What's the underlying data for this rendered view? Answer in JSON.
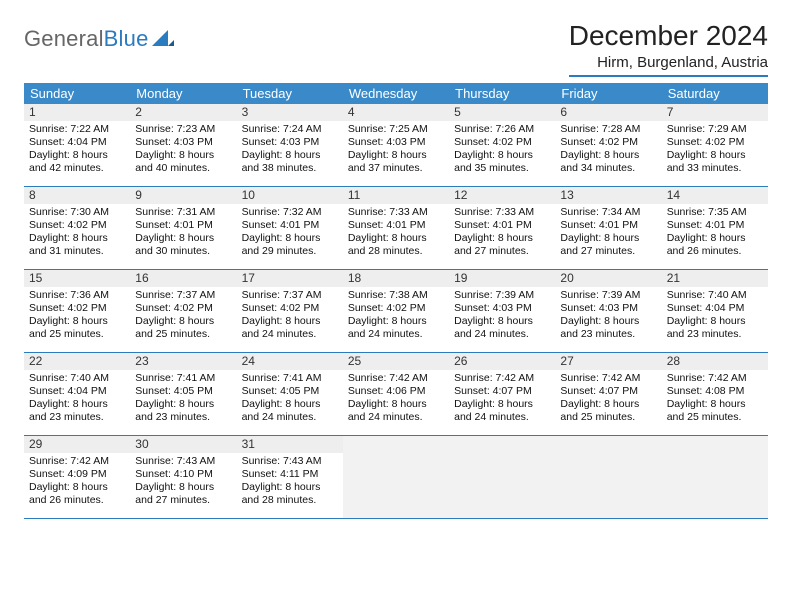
{
  "logo": {
    "text_general": "General",
    "text_blue": "Blue"
  },
  "title": "December 2024",
  "location": "Hirm, Burgenland, Austria",
  "colors": {
    "header_bg": "#3a8ac9",
    "header_text": "#ffffff",
    "daynum_bg": "#eeeeee",
    "border": "#2b7bbf",
    "logo_gray": "#666666",
    "logo_blue": "#2b7bbf",
    "body_text": "#111111",
    "bg": "#ffffff"
  },
  "weekdays": [
    "Sunday",
    "Monday",
    "Tuesday",
    "Wednesday",
    "Thursday",
    "Friday",
    "Saturday"
  ],
  "weeks": [
    [
      {
        "day": "1",
        "sunrise": "Sunrise: 7:22 AM",
        "sunset": "Sunset: 4:04 PM",
        "daylight": "Daylight: 8 hours and 42 minutes."
      },
      {
        "day": "2",
        "sunrise": "Sunrise: 7:23 AM",
        "sunset": "Sunset: 4:03 PM",
        "daylight": "Daylight: 8 hours and 40 minutes."
      },
      {
        "day": "3",
        "sunrise": "Sunrise: 7:24 AM",
        "sunset": "Sunset: 4:03 PM",
        "daylight": "Daylight: 8 hours and 38 minutes."
      },
      {
        "day": "4",
        "sunrise": "Sunrise: 7:25 AM",
        "sunset": "Sunset: 4:03 PM",
        "daylight": "Daylight: 8 hours and 37 minutes."
      },
      {
        "day": "5",
        "sunrise": "Sunrise: 7:26 AM",
        "sunset": "Sunset: 4:02 PM",
        "daylight": "Daylight: 8 hours and 35 minutes."
      },
      {
        "day": "6",
        "sunrise": "Sunrise: 7:28 AM",
        "sunset": "Sunset: 4:02 PM",
        "daylight": "Daylight: 8 hours and 34 minutes."
      },
      {
        "day": "7",
        "sunrise": "Sunrise: 7:29 AM",
        "sunset": "Sunset: 4:02 PM",
        "daylight": "Daylight: 8 hours and 33 minutes."
      }
    ],
    [
      {
        "day": "8",
        "sunrise": "Sunrise: 7:30 AM",
        "sunset": "Sunset: 4:02 PM",
        "daylight": "Daylight: 8 hours and 31 minutes."
      },
      {
        "day": "9",
        "sunrise": "Sunrise: 7:31 AM",
        "sunset": "Sunset: 4:01 PM",
        "daylight": "Daylight: 8 hours and 30 minutes."
      },
      {
        "day": "10",
        "sunrise": "Sunrise: 7:32 AM",
        "sunset": "Sunset: 4:01 PM",
        "daylight": "Daylight: 8 hours and 29 minutes."
      },
      {
        "day": "11",
        "sunrise": "Sunrise: 7:33 AM",
        "sunset": "Sunset: 4:01 PM",
        "daylight": "Daylight: 8 hours and 28 minutes."
      },
      {
        "day": "12",
        "sunrise": "Sunrise: 7:33 AM",
        "sunset": "Sunset: 4:01 PM",
        "daylight": "Daylight: 8 hours and 27 minutes."
      },
      {
        "day": "13",
        "sunrise": "Sunrise: 7:34 AM",
        "sunset": "Sunset: 4:01 PM",
        "daylight": "Daylight: 8 hours and 27 minutes."
      },
      {
        "day": "14",
        "sunrise": "Sunrise: 7:35 AM",
        "sunset": "Sunset: 4:01 PM",
        "daylight": "Daylight: 8 hours and 26 minutes."
      }
    ],
    [
      {
        "day": "15",
        "sunrise": "Sunrise: 7:36 AM",
        "sunset": "Sunset: 4:02 PM",
        "daylight": "Daylight: 8 hours and 25 minutes."
      },
      {
        "day": "16",
        "sunrise": "Sunrise: 7:37 AM",
        "sunset": "Sunset: 4:02 PM",
        "daylight": "Daylight: 8 hours and 25 minutes."
      },
      {
        "day": "17",
        "sunrise": "Sunrise: 7:37 AM",
        "sunset": "Sunset: 4:02 PM",
        "daylight": "Daylight: 8 hours and 24 minutes."
      },
      {
        "day": "18",
        "sunrise": "Sunrise: 7:38 AM",
        "sunset": "Sunset: 4:02 PM",
        "daylight": "Daylight: 8 hours and 24 minutes."
      },
      {
        "day": "19",
        "sunrise": "Sunrise: 7:39 AM",
        "sunset": "Sunset: 4:03 PM",
        "daylight": "Daylight: 8 hours and 24 minutes."
      },
      {
        "day": "20",
        "sunrise": "Sunrise: 7:39 AM",
        "sunset": "Sunset: 4:03 PM",
        "daylight": "Daylight: 8 hours and 23 minutes."
      },
      {
        "day": "21",
        "sunrise": "Sunrise: 7:40 AM",
        "sunset": "Sunset: 4:04 PM",
        "daylight": "Daylight: 8 hours and 23 minutes."
      }
    ],
    [
      {
        "day": "22",
        "sunrise": "Sunrise: 7:40 AM",
        "sunset": "Sunset: 4:04 PM",
        "daylight": "Daylight: 8 hours and 23 minutes."
      },
      {
        "day": "23",
        "sunrise": "Sunrise: 7:41 AM",
        "sunset": "Sunset: 4:05 PM",
        "daylight": "Daylight: 8 hours and 23 minutes."
      },
      {
        "day": "24",
        "sunrise": "Sunrise: 7:41 AM",
        "sunset": "Sunset: 4:05 PM",
        "daylight": "Daylight: 8 hours and 24 minutes."
      },
      {
        "day": "25",
        "sunrise": "Sunrise: 7:42 AM",
        "sunset": "Sunset: 4:06 PM",
        "daylight": "Daylight: 8 hours and 24 minutes."
      },
      {
        "day": "26",
        "sunrise": "Sunrise: 7:42 AM",
        "sunset": "Sunset: 4:07 PM",
        "daylight": "Daylight: 8 hours and 24 minutes."
      },
      {
        "day": "27",
        "sunrise": "Sunrise: 7:42 AM",
        "sunset": "Sunset: 4:07 PM",
        "daylight": "Daylight: 8 hours and 25 minutes."
      },
      {
        "day": "28",
        "sunrise": "Sunrise: 7:42 AM",
        "sunset": "Sunset: 4:08 PM",
        "daylight": "Daylight: 8 hours and 25 minutes."
      }
    ],
    [
      {
        "day": "29",
        "sunrise": "Sunrise: 7:42 AM",
        "sunset": "Sunset: 4:09 PM",
        "daylight": "Daylight: 8 hours and 26 minutes."
      },
      {
        "day": "30",
        "sunrise": "Sunrise: 7:43 AM",
        "sunset": "Sunset: 4:10 PM",
        "daylight": "Daylight: 8 hours and 27 minutes."
      },
      {
        "day": "31",
        "sunrise": "Sunrise: 7:43 AM",
        "sunset": "Sunset: 4:11 PM",
        "daylight": "Daylight: 8 hours and 28 minutes."
      },
      null,
      null,
      null,
      null
    ]
  ]
}
